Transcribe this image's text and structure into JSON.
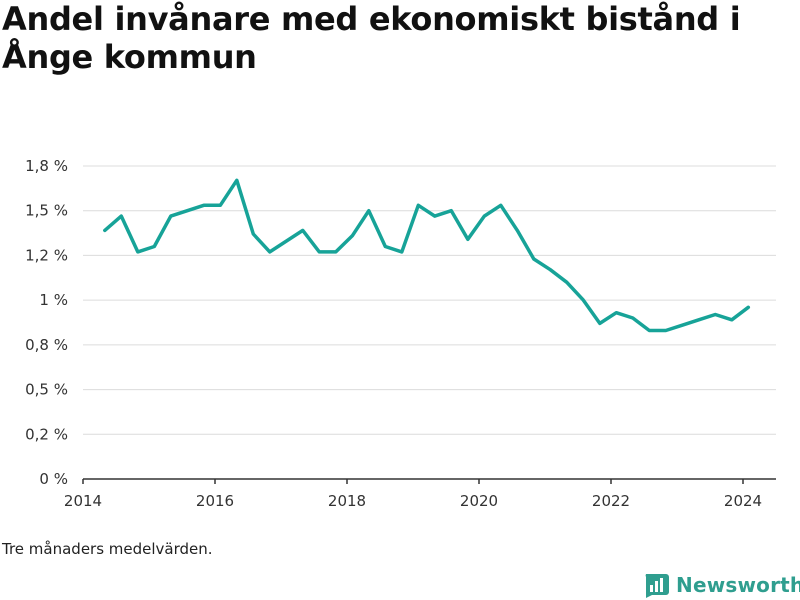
{
  "title": "Andel invånare med ekonomiskt bistånd i Ånge kommun",
  "footnote": "Tre månaders medelvärden.",
  "brand": {
    "name": "Newsworthy",
    "icon": "bar-chart-logo-icon",
    "color": "#2f9e8f"
  },
  "chart_data": {
    "type": "line",
    "title": "Andel invånare med ekonomiskt bistånd i Ånge kommun",
    "xlabel": "",
    "ylabel": "",
    "xlim": [
      2014,
      2024.5
    ],
    "ylim": [
      0,
      1.75
    ],
    "x_ticks": [
      2014,
      2016,
      2018,
      2020,
      2022,
      2024
    ],
    "y_ticks": [
      0,
      0.25,
      0.5,
      0.75,
      1.0,
      1.25,
      1.5,
      1.75
    ],
    "y_tick_labels": [
      "0 %",
      "0,2 %",
      "0,5 %",
      "0,8 %",
      "1 %",
      "1,2 %",
      "1,5 %",
      "1,8 %"
    ],
    "grid": true,
    "line_color": "#17a398",
    "series": [
      {
        "name": "",
        "x": [
          2014.33,
          2014.58,
          2014.83,
          2015.08,
          2015.33,
          2015.58,
          2015.83,
          2016.08,
          2016.33,
          2016.58,
          2016.83,
          2017.08,
          2017.33,
          2017.58,
          2017.83,
          2018.08,
          2018.33,
          2018.58,
          2018.83,
          2019.08,
          2019.33,
          2019.58,
          2019.83,
          2020.08,
          2020.33,
          2020.58,
          2020.83,
          2021.08,
          2021.33,
          2021.58,
          2021.83,
          2022.08,
          2022.33,
          2022.58,
          2022.83,
          2023.08,
          2023.33,
          2023.58,
          2023.83,
          2024.08
        ],
        "values": [
          1.39,
          1.47,
          1.27,
          1.3,
          1.47,
          1.5,
          1.53,
          1.53,
          1.67,
          1.37,
          1.27,
          1.33,
          1.39,
          1.27,
          1.27,
          1.36,
          1.5,
          1.3,
          1.27,
          1.53,
          1.47,
          1.5,
          1.34,
          1.47,
          1.53,
          1.39,
          1.23,
          1.17,
          1.1,
          1.0,
          0.87,
          0.93,
          0.9,
          0.83,
          0.83,
          0.86,
          0.89,
          0.92,
          0.89,
          0.96
        ]
      }
    ]
  }
}
